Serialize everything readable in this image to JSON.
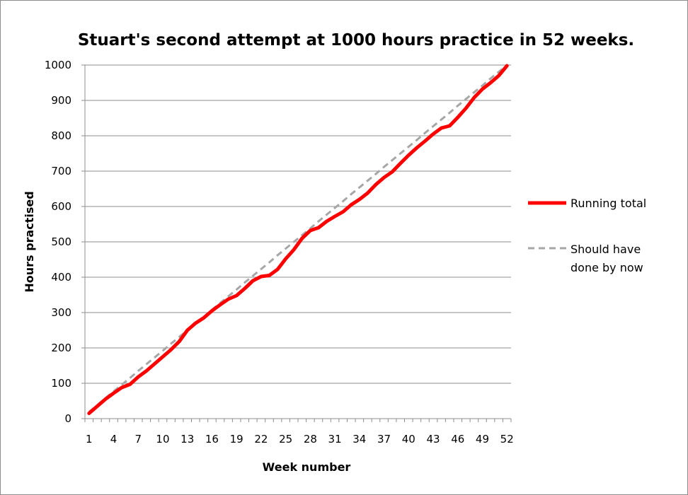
{
  "chart_data": {
    "type": "line",
    "title": "Stuart's second attempt at 1000 hours practice in 52 weeks.",
    "xlabel": "Week number",
    "ylabel": "Hours practised",
    "ylim": [
      0,
      1000
    ],
    "yticks": [
      0,
      100,
      200,
      300,
      400,
      500,
      600,
      700,
      800,
      900,
      1000
    ],
    "xticks": [
      1,
      4,
      7,
      10,
      13,
      16,
      19,
      22,
      25,
      28,
      31,
      34,
      37,
      40,
      43,
      46,
      49,
      52
    ],
    "x": [
      1,
      2,
      3,
      4,
      5,
      6,
      7,
      8,
      9,
      10,
      11,
      12,
      13,
      14,
      15,
      16,
      17,
      18,
      19,
      20,
      21,
      22,
      23,
      24,
      25,
      26,
      27,
      28,
      29,
      30,
      31,
      32,
      33,
      34,
      35,
      36,
      37,
      38,
      39,
      40,
      41,
      42,
      43,
      44,
      45,
      46,
      47,
      48,
      49,
      50,
      51,
      52
    ],
    "grid": true,
    "legend_position": "right",
    "series": [
      {
        "name": "Running total",
        "color": "#ff0000",
        "style": "solid",
        "values": [
          15,
          35,
          55,
          72,
          88,
          97,
          118,
          135,
          155,
          175,
          195,
          218,
          250,
          270,
          285,
          305,
          322,
          338,
          348,
          368,
          390,
          402,
          405,
          422,
          452,
          478,
          510,
          532,
          540,
          558,
          572,
          585,
          605,
          620,
          638,
          662,
          682,
          698,
          722,
          745,
          766,
          785,
          805,
          822,
          828,
          852,
          878,
          908,
          932,
          950,
          970,
          998
        ]
      },
      {
        "name": "Should have done by now",
        "color": "#a6a6a6",
        "style": "dashed",
        "values": [
          19,
          38,
          58,
          77,
          96,
          115,
          135,
          154,
          173,
          192,
          212,
          231,
          250,
          269,
          288,
          308,
          327,
          346,
          365,
          385,
          404,
          423,
          442,
          462,
          481,
          500,
          519,
          538,
          558,
          577,
          596,
          615,
          635,
          654,
          673,
          692,
          712,
          731,
          750,
          769,
          788,
          808,
          827,
          846,
          865,
          885,
          904,
          923,
          942,
          962,
          981,
          1000
        ]
      }
    ]
  },
  "legend": {
    "entries": [
      {
        "lines": [
          "Running total"
        ]
      },
      {
        "lines": [
          "Should have",
          "done by now"
        ]
      }
    ]
  }
}
